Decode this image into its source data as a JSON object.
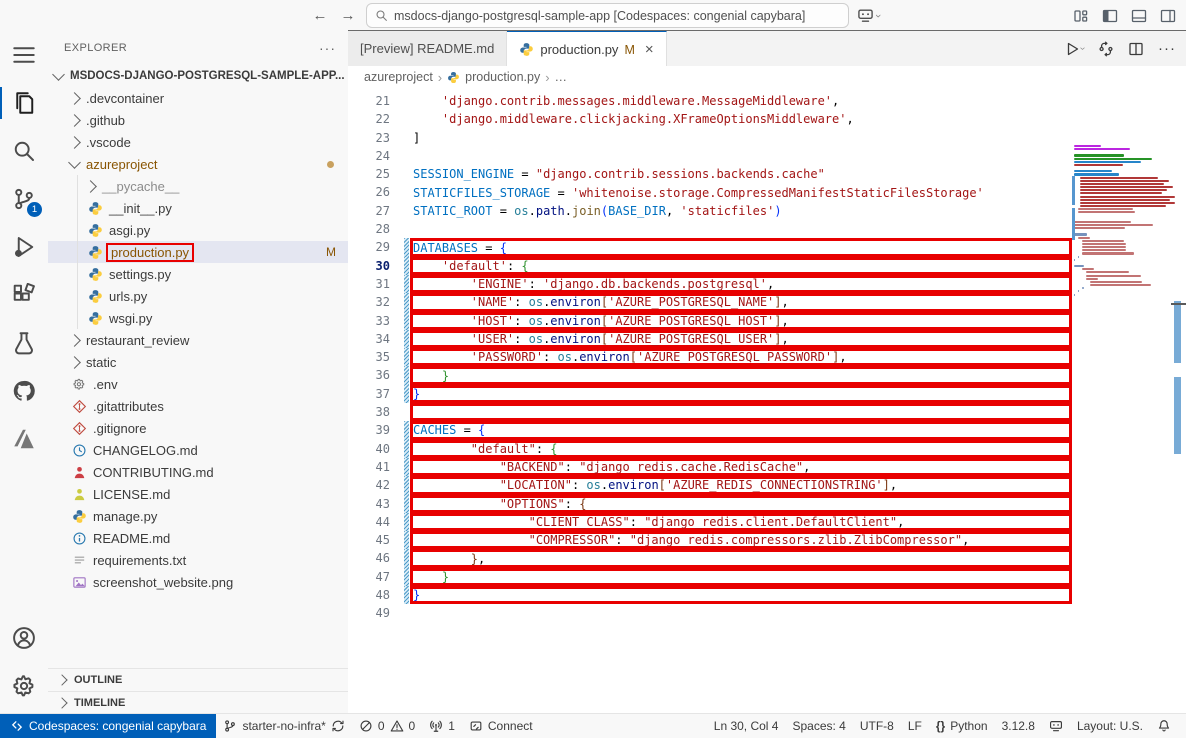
{
  "colors": {
    "accent": "#005fb8",
    "modified": "#895503",
    "annotation": "#e80000"
  },
  "annotation": {
    "color": "#e80000",
    "note": "red boxes drawn around modified code lines and around production.py in the explorer"
  },
  "title_bar": {
    "back": "←",
    "forward": "→",
    "search_value": "msdocs-django-postgresql-sample-app [Codespaces: congenial capybara]",
    "layout_icons": [
      "customize-layout-icon",
      "panel-left-icon",
      "panel-bottom-icon",
      "panel-right-icon"
    ]
  },
  "activity_bar": {
    "items": [
      {
        "name": "menu",
        "icon": "menu-icon"
      },
      {
        "name": "explorer",
        "icon": "files-icon",
        "active": true
      },
      {
        "name": "search",
        "icon": "search-icon"
      },
      {
        "name": "source-control",
        "icon": "source-control-icon",
        "badge": "1"
      },
      {
        "name": "run-and-debug",
        "icon": "debug-icon"
      },
      {
        "name": "extensions",
        "icon": "extensions-icon"
      },
      {
        "name": "testing",
        "icon": "beaker-icon"
      },
      {
        "name": "github",
        "icon": "github-icon"
      },
      {
        "name": "azure",
        "icon": "azure-icon"
      }
    ],
    "bottom": [
      {
        "name": "accounts",
        "icon": "account-icon"
      },
      {
        "name": "settings",
        "icon": "gear-icon"
      }
    ]
  },
  "sidebar": {
    "title": "EXPLORER",
    "more": "···",
    "root": {
      "label": "MSDOCS-DJANGO-POSTGRESQL-SAMPLE-APP...",
      "expanded": true
    },
    "items": [
      {
        "label": ".devcontainer",
        "type": "folder",
        "depth": 1
      },
      {
        "label": ".github",
        "type": "folder",
        "depth": 1
      },
      {
        "label": ".vscode",
        "type": "folder",
        "depth": 1
      },
      {
        "label": "azureproject",
        "type": "folder",
        "depth": 1,
        "expanded": true,
        "color": "modified",
        "dot": true
      },
      {
        "label": "__pycache__",
        "type": "folder",
        "depth": 2,
        "color": "ignored"
      },
      {
        "label": "__init__.py",
        "icon": "python-icon",
        "depth": 2
      },
      {
        "label": "asgi.py",
        "icon": "python-icon",
        "depth": 2
      },
      {
        "label": "production.py",
        "icon": "python-icon",
        "depth": 2,
        "selected": true,
        "annotated": true,
        "badge": "M",
        "color": "modified"
      },
      {
        "label": "settings.py",
        "icon": "python-icon",
        "depth": 2
      },
      {
        "label": "urls.py",
        "icon": "python-icon",
        "depth": 2
      },
      {
        "label": "wsgi.py",
        "icon": "python-icon",
        "depth": 2
      },
      {
        "label": "restaurant_review",
        "type": "folder",
        "depth": 1
      },
      {
        "label": "static",
        "type": "folder",
        "depth": 1
      },
      {
        "label": ".env",
        "icon": "gear-file-icon",
        "depth": 1
      },
      {
        "label": ".gitattributes",
        "icon": "git-icon",
        "depth": 1
      },
      {
        "label": ".gitignore",
        "icon": "git-icon",
        "depth": 1
      },
      {
        "label": "CHANGELOG.md",
        "icon": "clock-icon",
        "depth": 1
      },
      {
        "label": "CONTRIBUTING.md",
        "icon": "person-red-icon",
        "depth": 1
      },
      {
        "label": "LICENSE.md",
        "icon": "person-yellow-icon",
        "depth": 1
      },
      {
        "label": "manage.py",
        "icon": "python-icon",
        "depth": 1
      },
      {
        "label": "README.md",
        "icon": "info-icon",
        "depth": 1
      },
      {
        "label": "requirements.txt",
        "icon": "text-lines-icon",
        "depth": 1
      },
      {
        "label": "screenshot_website.png",
        "icon": "image-icon",
        "depth": 1
      }
    ],
    "sections": [
      {
        "label": "OUTLINE"
      },
      {
        "label": "TIMELINE"
      }
    ]
  },
  "tabs": [
    {
      "label": "[Preview] README.md",
      "active": false
    },
    {
      "label": "production.py",
      "active": true,
      "icon": "python-icon",
      "badge": "M",
      "close": "×"
    }
  ],
  "editor_actions": {
    "run_icon": "run-icon",
    "changes_icon": "open-changes-icon",
    "split_icon": "split-icon",
    "more": "···"
  },
  "breadcrumb": {
    "separator": "›",
    "items": [
      {
        "label": "azureproject"
      },
      {
        "label": "production.py",
        "icon": "python-icon"
      },
      {
        "label": "…"
      }
    ]
  },
  "editor": {
    "lines": [
      {
        "n": 21,
        "t": [
          [
            "p",
            "    "
          ],
          [
            "s",
            "'django.contrib.messages.middleware.MessageMiddleware'"
          ],
          [
            "p",
            ","
          ]
        ]
      },
      {
        "n": 22,
        "t": [
          [
            "p",
            "    "
          ],
          [
            "s",
            "'django.middleware.clickjacking.XFrameOptionsMiddleware'"
          ],
          [
            "p",
            ","
          ]
        ]
      },
      {
        "n": 23,
        "t": [
          [
            "p",
            "]"
          ]
        ]
      },
      {
        "n": 24,
        "t": []
      },
      {
        "n": 25,
        "t": [
          [
            "v",
            "SESSION_ENGINE"
          ],
          [
            "p",
            " = "
          ],
          [
            "s",
            "\"django.contrib.sessions.backends.cache\""
          ]
        ]
      },
      {
        "n": 26,
        "t": [
          [
            "v",
            "STATICFILES_STORAGE"
          ],
          [
            "p",
            " = "
          ],
          [
            "s",
            "'whitenoise.storage.CompressedManifestStaticFilesStorage'"
          ]
        ]
      },
      {
        "n": 27,
        "t": [
          [
            "v",
            "STATIC_ROOT"
          ],
          [
            "p",
            " = "
          ],
          [
            "m",
            "os"
          ],
          [
            "p",
            "."
          ],
          [
            "o",
            "path"
          ],
          [
            "p",
            "."
          ],
          [
            "f",
            "join"
          ],
          [
            "a",
            "("
          ],
          [
            "v",
            "BASE_DIR"
          ],
          [
            "p",
            ", "
          ],
          [
            "s",
            "'staticfiles'"
          ],
          [
            "a",
            ")"
          ]
        ]
      },
      {
        "n": 28,
        "t": []
      },
      {
        "n": 29,
        "box": true,
        "mod": true,
        "t": [
          [
            "v",
            "DATABASES"
          ],
          [
            "p",
            " = "
          ],
          [
            "a",
            "{"
          ]
        ]
      },
      {
        "n": 30,
        "box": true,
        "mod": true,
        "cur": true,
        "t": [
          [
            "p",
            "    "
          ],
          [
            "s",
            "'default'"
          ],
          [
            "p",
            ": "
          ],
          [
            "b",
            "{"
          ]
        ]
      },
      {
        "n": 31,
        "box": true,
        "mod": true,
        "t": [
          [
            "p",
            "        "
          ],
          [
            "s",
            "'ENGINE'"
          ],
          [
            "p",
            ": "
          ],
          [
            "s",
            "'django.db.backends.postgresql'"
          ],
          [
            "p",
            ","
          ]
        ]
      },
      {
        "n": 32,
        "box": true,
        "mod": true,
        "t": [
          [
            "p",
            "        "
          ],
          [
            "s",
            "'NAME'"
          ],
          [
            "p",
            ": "
          ],
          [
            "m",
            "os"
          ],
          [
            "p",
            "."
          ],
          [
            "o",
            "environ"
          ],
          [
            "c",
            "["
          ],
          [
            "s",
            "'AZURE_POSTGRESQL_NAME'"
          ],
          [
            "c",
            "]"
          ],
          [
            "p",
            ","
          ]
        ]
      },
      {
        "n": 33,
        "box": true,
        "mod": true,
        "t": [
          [
            "p",
            "        "
          ],
          [
            "s",
            "'HOST'"
          ],
          [
            "p",
            ": "
          ],
          [
            "m",
            "os"
          ],
          [
            "p",
            "."
          ],
          [
            "o",
            "environ"
          ],
          [
            "c",
            "["
          ],
          [
            "s",
            "'AZURE_POSTGRESQL_HOST'"
          ],
          [
            "c",
            "]"
          ],
          [
            "p",
            ","
          ]
        ]
      },
      {
        "n": 34,
        "box": true,
        "mod": true,
        "t": [
          [
            "p",
            "        "
          ],
          [
            "s",
            "'USER'"
          ],
          [
            "p",
            ": "
          ],
          [
            "m",
            "os"
          ],
          [
            "p",
            "."
          ],
          [
            "o",
            "environ"
          ],
          [
            "c",
            "["
          ],
          [
            "s",
            "'AZURE_POSTGRESQL_USER'"
          ],
          [
            "c",
            "]"
          ],
          [
            "p",
            ","
          ]
        ]
      },
      {
        "n": 35,
        "box": true,
        "mod": true,
        "t": [
          [
            "p",
            "        "
          ],
          [
            "s",
            "'PASSWORD'"
          ],
          [
            "p",
            ": "
          ],
          [
            "m",
            "os"
          ],
          [
            "p",
            "."
          ],
          [
            "o",
            "environ"
          ],
          [
            "c",
            "["
          ],
          [
            "s",
            "'AZURE_POSTGRESQL_PASSWORD'"
          ],
          [
            "c",
            "]"
          ],
          [
            "p",
            ","
          ]
        ]
      },
      {
        "n": 36,
        "box": true,
        "mod": true,
        "t": [
          [
            "p",
            "    "
          ],
          [
            "b",
            "}"
          ]
        ]
      },
      {
        "n": 37,
        "box": true,
        "mod": true,
        "t": [
          [
            "a",
            "}"
          ]
        ]
      },
      {
        "n": 38,
        "box": true,
        "t": []
      },
      {
        "n": 39,
        "box": true,
        "mod": true,
        "t": [
          [
            "v",
            "CACHES"
          ],
          [
            "p",
            " = "
          ],
          [
            "a",
            "{"
          ]
        ]
      },
      {
        "n": 40,
        "box": true,
        "mod": true,
        "t": [
          [
            "p",
            "        "
          ],
          [
            "s",
            "\"default\""
          ],
          [
            "p",
            ": "
          ],
          [
            "b",
            "{"
          ]
        ]
      },
      {
        "n": 41,
        "box": true,
        "mod": true,
        "t": [
          [
            "p",
            "            "
          ],
          [
            "s",
            "\"BACKEND\""
          ],
          [
            "p",
            ": "
          ],
          [
            "s",
            "\"django_redis.cache.RedisCache\""
          ],
          [
            "p",
            ","
          ]
        ]
      },
      {
        "n": 42,
        "box": true,
        "mod": true,
        "t": [
          [
            "p",
            "            "
          ],
          [
            "s",
            "\"LOCATION\""
          ],
          [
            "p",
            ": "
          ],
          [
            "m",
            "os"
          ],
          [
            "p",
            "."
          ],
          [
            "o",
            "environ"
          ],
          [
            "c",
            "["
          ],
          [
            "s",
            "'AZURE_REDIS_CONNECTIONSTRING'"
          ],
          [
            "c",
            "]"
          ],
          [
            "p",
            ","
          ]
        ]
      },
      {
        "n": 43,
        "box": true,
        "mod": true,
        "t": [
          [
            "p",
            "            "
          ],
          [
            "s",
            "\"OPTIONS\""
          ],
          [
            "p",
            ": "
          ],
          [
            "c",
            "{"
          ]
        ]
      },
      {
        "n": 44,
        "box": true,
        "mod": true,
        "t": [
          [
            "p",
            "                "
          ],
          [
            "s",
            "\"CLIENT_CLASS\""
          ],
          [
            "p",
            ": "
          ],
          [
            "s",
            "\"django_redis.client.DefaultClient\""
          ],
          [
            "p",
            ","
          ]
        ]
      },
      {
        "n": 45,
        "box": true,
        "mod": true,
        "t": [
          [
            "p",
            "                "
          ],
          [
            "s",
            "\"COMPRESSOR\""
          ],
          [
            "p",
            ": "
          ],
          [
            "s",
            "\"django_redis.compressors.zlib.ZlibCompressor\""
          ],
          [
            "p",
            ","
          ]
        ]
      },
      {
        "n": 46,
        "box": true,
        "mod": true,
        "t": [
          [
            "p",
            "        "
          ],
          [
            "c",
            "}"
          ],
          [
            "p",
            ","
          ]
        ]
      },
      {
        "n": 47,
        "box": true,
        "mod": true,
        "t": [
          [
            "p",
            "    "
          ],
          [
            "b",
            "}"
          ]
        ]
      },
      {
        "n": 48,
        "box": true,
        "mod": true,
        "t": [
          [
            "a",
            "}"
          ]
        ]
      },
      {
        "n": 49,
        "t": []
      }
    ]
  },
  "status_bar": {
    "left": [
      {
        "name": "remote",
        "remote": true,
        "parts": [
          [
            "icon",
            "remote-icon"
          ],
          [
            "text",
            "Codespaces: congenial capybara"
          ]
        ]
      },
      {
        "name": "branch",
        "parts": [
          [
            "icon",
            "git-branch-icon"
          ],
          [
            "text",
            "starter-no-infra*"
          ],
          [
            "icon",
            "sync-icon"
          ]
        ]
      },
      {
        "name": "problems",
        "parts": [
          [
            "icon",
            "error-icon"
          ],
          [
            "text",
            "0"
          ],
          [
            "icon",
            "warning-icon"
          ],
          [
            "text",
            "0"
          ]
        ]
      },
      {
        "name": "ports",
        "parts": [
          [
            "icon",
            "radio-tower-icon"
          ],
          [
            "text",
            "1"
          ]
        ]
      },
      {
        "name": "connect",
        "parts": [
          [
            "icon",
            "connect-icon"
          ],
          [
            "text",
            "Connect"
          ]
        ]
      }
    ],
    "right": [
      {
        "name": "cursor-position",
        "parts": [
          [
            "text",
            "Ln 30, Col 4"
          ]
        ]
      },
      {
        "name": "indentation",
        "parts": [
          [
            "text",
            "Spaces: 4"
          ]
        ]
      },
      {
        "name": "encoding",
        "parts": [
          [
            "text",
            "UTF-8"
          ]
        ]
      },
      {
        "name": "eol",
        "parts": [
          [
            "text",
            "LF"
          ]
        ]
      },
      {
        "name": "language-mode",
        "parts": [
          [
            "braces",
            "{}"
          ],
          [
            "text",
            "Python"
          ]
        ]
      },
      {
        "name": "python-version",
        "parts": [
          [
            "text",
            "3.12.8"
          ]
        ]
      },
      {
        "name": "codespaces-status",
        "parts": [
          [
            "icon",
            "codespaces-icon"
          ]
        ]
      },
      {
        "name": "keyboard-layout",
        "parts": [
          [
            "text",
            "Layout: U.S."
          ]
        ]
      },
      {
        "name": "notifications",
        "parts": [
          [
            "icon",
            "bell-icon"
          ]
        ]
      }
    ]
  }
}
